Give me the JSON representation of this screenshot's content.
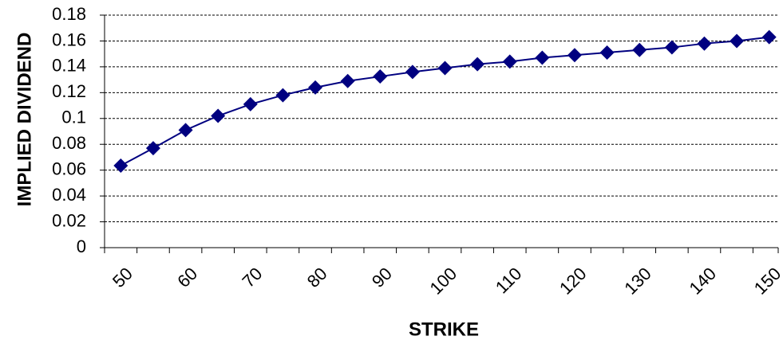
{
  "chart_data": {
    "type": "line",
    "x_label": "STRIKE",
    "y_label": "IMPLIED DIVIDEND",
    "categories": [
      "50",
      null,
      "60",
      null,
      "70",
      null,
      "80",
      null,
      "90",
      null,
      "100",
      null,
      "110",
      null,
      "120",
      null,
      "130",
      null,
      "140",
      null,
      "150"
    ],
    "series": [
      {
        "name": "Implied dividend",
        "color": "#000080",
        "values": [
          0.0635,
          0.077,
          0.091,
          0.102,
          0.111,
          0.118,
          0.124,
          0.129,
          0.1325,
          0.136,
          0.139,
          0.142,
          0.144,
          0.147,
          0.149,
          0.151,
          0.153,
          0.155,
          0.158,
          0.16,
          0.163
        ]
      }
    ],
    "ylim": [
      0,
      0.18
    ],
    "yticks": [
      0,
      0.02,
      0.04,
      0.06,
      0.08,
      0.1,
      0.12,
      0.14,
      0.16,
      0.18
    ],
    "grid": true
  }
}
